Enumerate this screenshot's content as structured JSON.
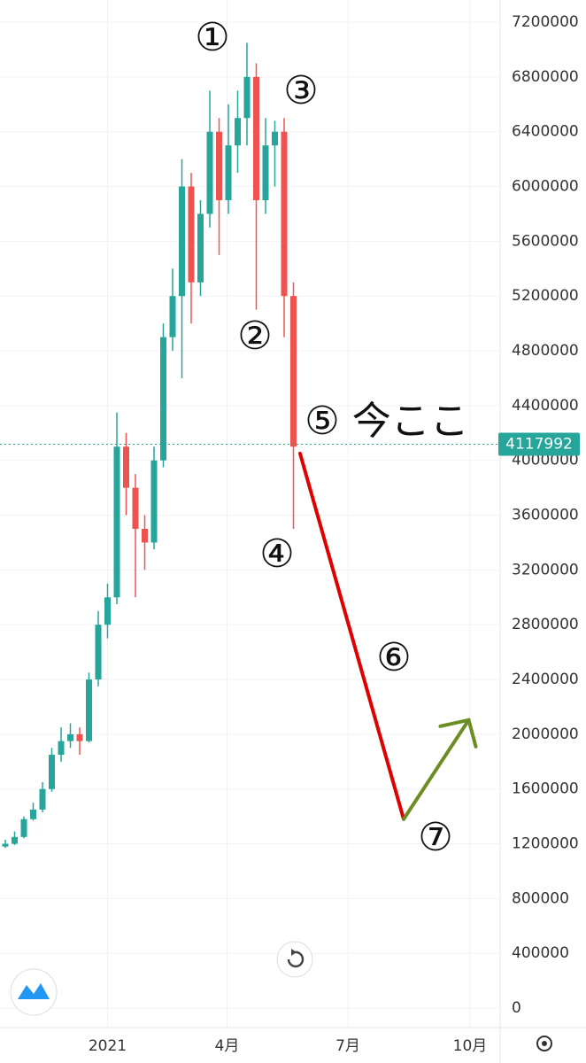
{
  "chart_data": {
    "type": "candlestick",
    "x": [
      -77,
      -70,
      -63,
      -56,
      -49,
      -42,
      -35,
      -28,
      -21,
      -14,
      -7,
      0,
      7,
      14,
      21,
      28,
      35,
      42,
      49,
      56,
      63,
      70,
      77,
      84,
      91,
      98,
      105,
      112,
      119,
      126,
      133,
      140
    ],
    "open": [
      1180000,
      1200000,
      1250000,
      1380000,
      1450000,
      1600000,
      1850000,
      1950000,
      2000000,
      1950000,
      2400000,
      2800000,
      3000000,
      4100000,
      3800000,
      3500000,
      3400000,
      4000000,
      4900000,
      5200000,
      6000000,
      5300000,
      5800000,
      6400000,
      5900000,
      6300000,
      6500000,
      6800000,
      5900000,
      6300000,
      6400000,
      5200000
    ],
    "high": [
      1230000,
      1290000,
      1400000,
      1500000,
      1650000,
      1900000,
      2050000,
      2080000,
      2050000,
      2450000,
      2900000,
      3100000,
      4350000,
      4200000,
      3900000,
      3600000,
      4100000,
      5000000,
      5400000,
      6200000,
      6100000,
      5900000,
      6700000,
      6500000,
      6600000,
      6700000,
      7050000,
      6900000,
      6500000,
      6480000,
      6500000,
      5300000
    ],
    "low": [
      1170000,
      1190000,
      1240000,
      1370000,
      1430000,
      1580000,
      1800000,
      1900000,
      1850000,
      1940000,
      2350000,
      2700000,
      2950000,
      3600000,
      3000000,
      3200000,
      3350000,
      3950000,
      4800000,
      4600000,
      5000000,
      5200000,
      5700000,
      5500000,
      5800000,
      6100000,
      6300000,
      5100000,
      5800000,
      6000000,
      4900000,
      3500000
    ],
    "close": [
      1200000,
      1250000,
      1380000,
      1450000,
      1600000,
      1850000,
      1950000,
      2000000,
      1950000,
      2400000,
      2800000,
      3000000,
      4100000,
      3800000,
      3500000,
      3400000,
      4000000,
      4900000,
      5200000,
      6000000,
      5300000,
      5800000,
      6400000,
      5900000,
      6300000,
      6500000,
      6800000,
      5900000,
      6300000,
      6400000,
      5200000,
      4100000
    ],
    "up_color": "#26a69a",
    "down_color": "#ef5350",
    "xlim": [
      -81,
      295
    ],
    "xticks": [
      {
        "value": 0,
        "label": "2021"
      },
      {
        "value": 90,
        "label": "4月"
      },
      {
        "value": 181,
        "label": "7月"
      },
      {
        "value": 273,
        "label": "10月"
      }
    ],
    "ylim": [
      -142000,
      7362000
    ],
    "yticks": [
      0,
      400000,
      800000,
      1200000,
      1600000,
      2000000,
      2400000,
      2800000,
      3200000,
      3600000,
      4000000,
      4400000,
      4800000,
      5200000,
      5600000,
      6000000,
      6400000,
      6800000,
      7200000
    ],
    "grid": true,
    "current_price": 4117992,
    "projections": [
      {
        "color": "#e00000",
        "x": [
          145,
          223
        ],
        "values": [
          4050000,
          1380000
        ]
      },
      {
        "color": "#6b8e23",
        "x": [
          223,
          272
        ],
        "values": [
          1380000,
          2104000
        ]
      }
    ],
    "annotations": [
      "①",
      "②",
      "③",
      "④",
      "⑤ 今ここ",
      "⑥",
      "⑦"
    ]
  }
}
